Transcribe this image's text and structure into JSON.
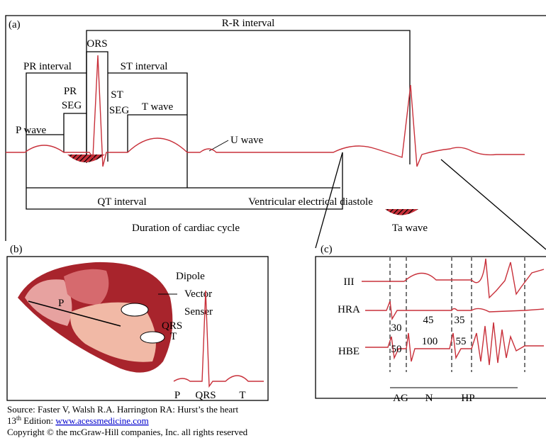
{
  "panel_a": {
    "label": "(a)",
    "rr_interval": "R-R interval",
    "qrs": "ORS",
    "pr_interval": "PR interval",
    "st_interval": "ST interval",
    "pr_seg": [
      "PR",
      "SEG"
    ],
    "st_seg": [
      "ST",
      "SEG"
    ],
    "t_wave": "T wave",
    "p_wave": "P wave",
    "u_wave": "U wave",
    "qt_interval": "QT interval",
    "diastole": "Ventricular electrical diastole",
    "cycle": "Duration of cardiac cycle",
    "ta_wave": "Ta wave"
  },
  "panel_b": {
    "label": "(b)",
    "heart_p": "P",
    "legend": [
      "Dipole",
      "Vector",
      "Senser"
    ],
    "qrs_mark": "QRS",
    "t_mark": "T",
    "axis": [
      "P",
      "QRS",
      "T"
    ]
  },
  "panel_c": {
    "label": "(c)",
    "leads": [
      "III",
      "HRA",
      "HBE"
    ],
    "numbers": [
      "30",
      "45",
      "35",
      "50",
      "100",
      "55"
    ],
    "intervals": [
      "AG",
      "N",
      "HP"
    ]
  },
  "source": {
    "line1": "Source: Faster V, Walsh R.A. Harrington RA: Hurst’s the heart",
    "edition_number": "13",
    "edition_suffix": "th",
    "edition_text": " Edition: ",
    "url": "www.acessmedicine.com",
    "line3": "Copyright © the mcGraw-Hill companies, Inc. all rights reserved"
  }
}
